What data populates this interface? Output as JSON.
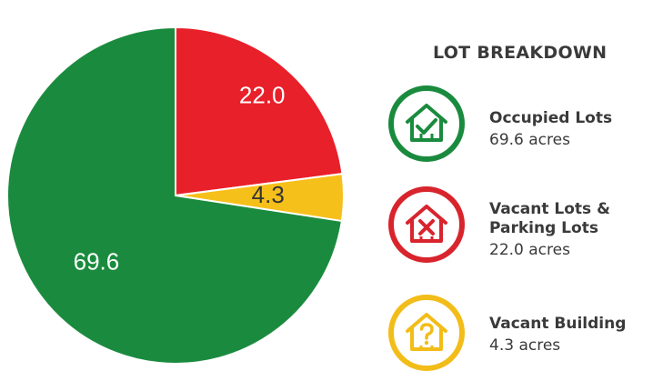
{
  "chart_data": {
    "type": "pie",
    "categories": [
      "Occupied Lots",
      "Vacant Lots & Parking Lots",
      "Vacant Building"
    ],
    "values": [
      69.6,
      22.0,
      4.3
    ],
    "value_labels": [
      "69.6",
      "22.0",
      "4.3"
    ],
    "colors": [
      "#1a8b3e",
      "#e8202a",
      "#f6c01a"
    ],
    "label_colors": [
      "#ffffff",
      "#ffffff",
      "#333333"
    ],
    "legend_title": "LOT BREAKDOWN",
    "legend_placement": "right",
    "legend": [
      {
        "name_lines": [
          "Occupied Lots"
        ],
        "value": "69.6 acres",
        "color": "#1a8b3e",
        "icon": "house-check-icon"
      },
      {
        "name_lines": [
          "Vacant Lots &",
          "Parking Lots"
        ],
        "value": "22.0 acres",
        "color": "#d8242d",
        "icon": "house-x-icon"
      },
      {
        "name_lines": [
          "Vacant Building"
        ],
        "value": "4.3 acres",
        "color": "#f2bd19",
        "icon": "house-question-icon"
      }
    ]
  }
}
